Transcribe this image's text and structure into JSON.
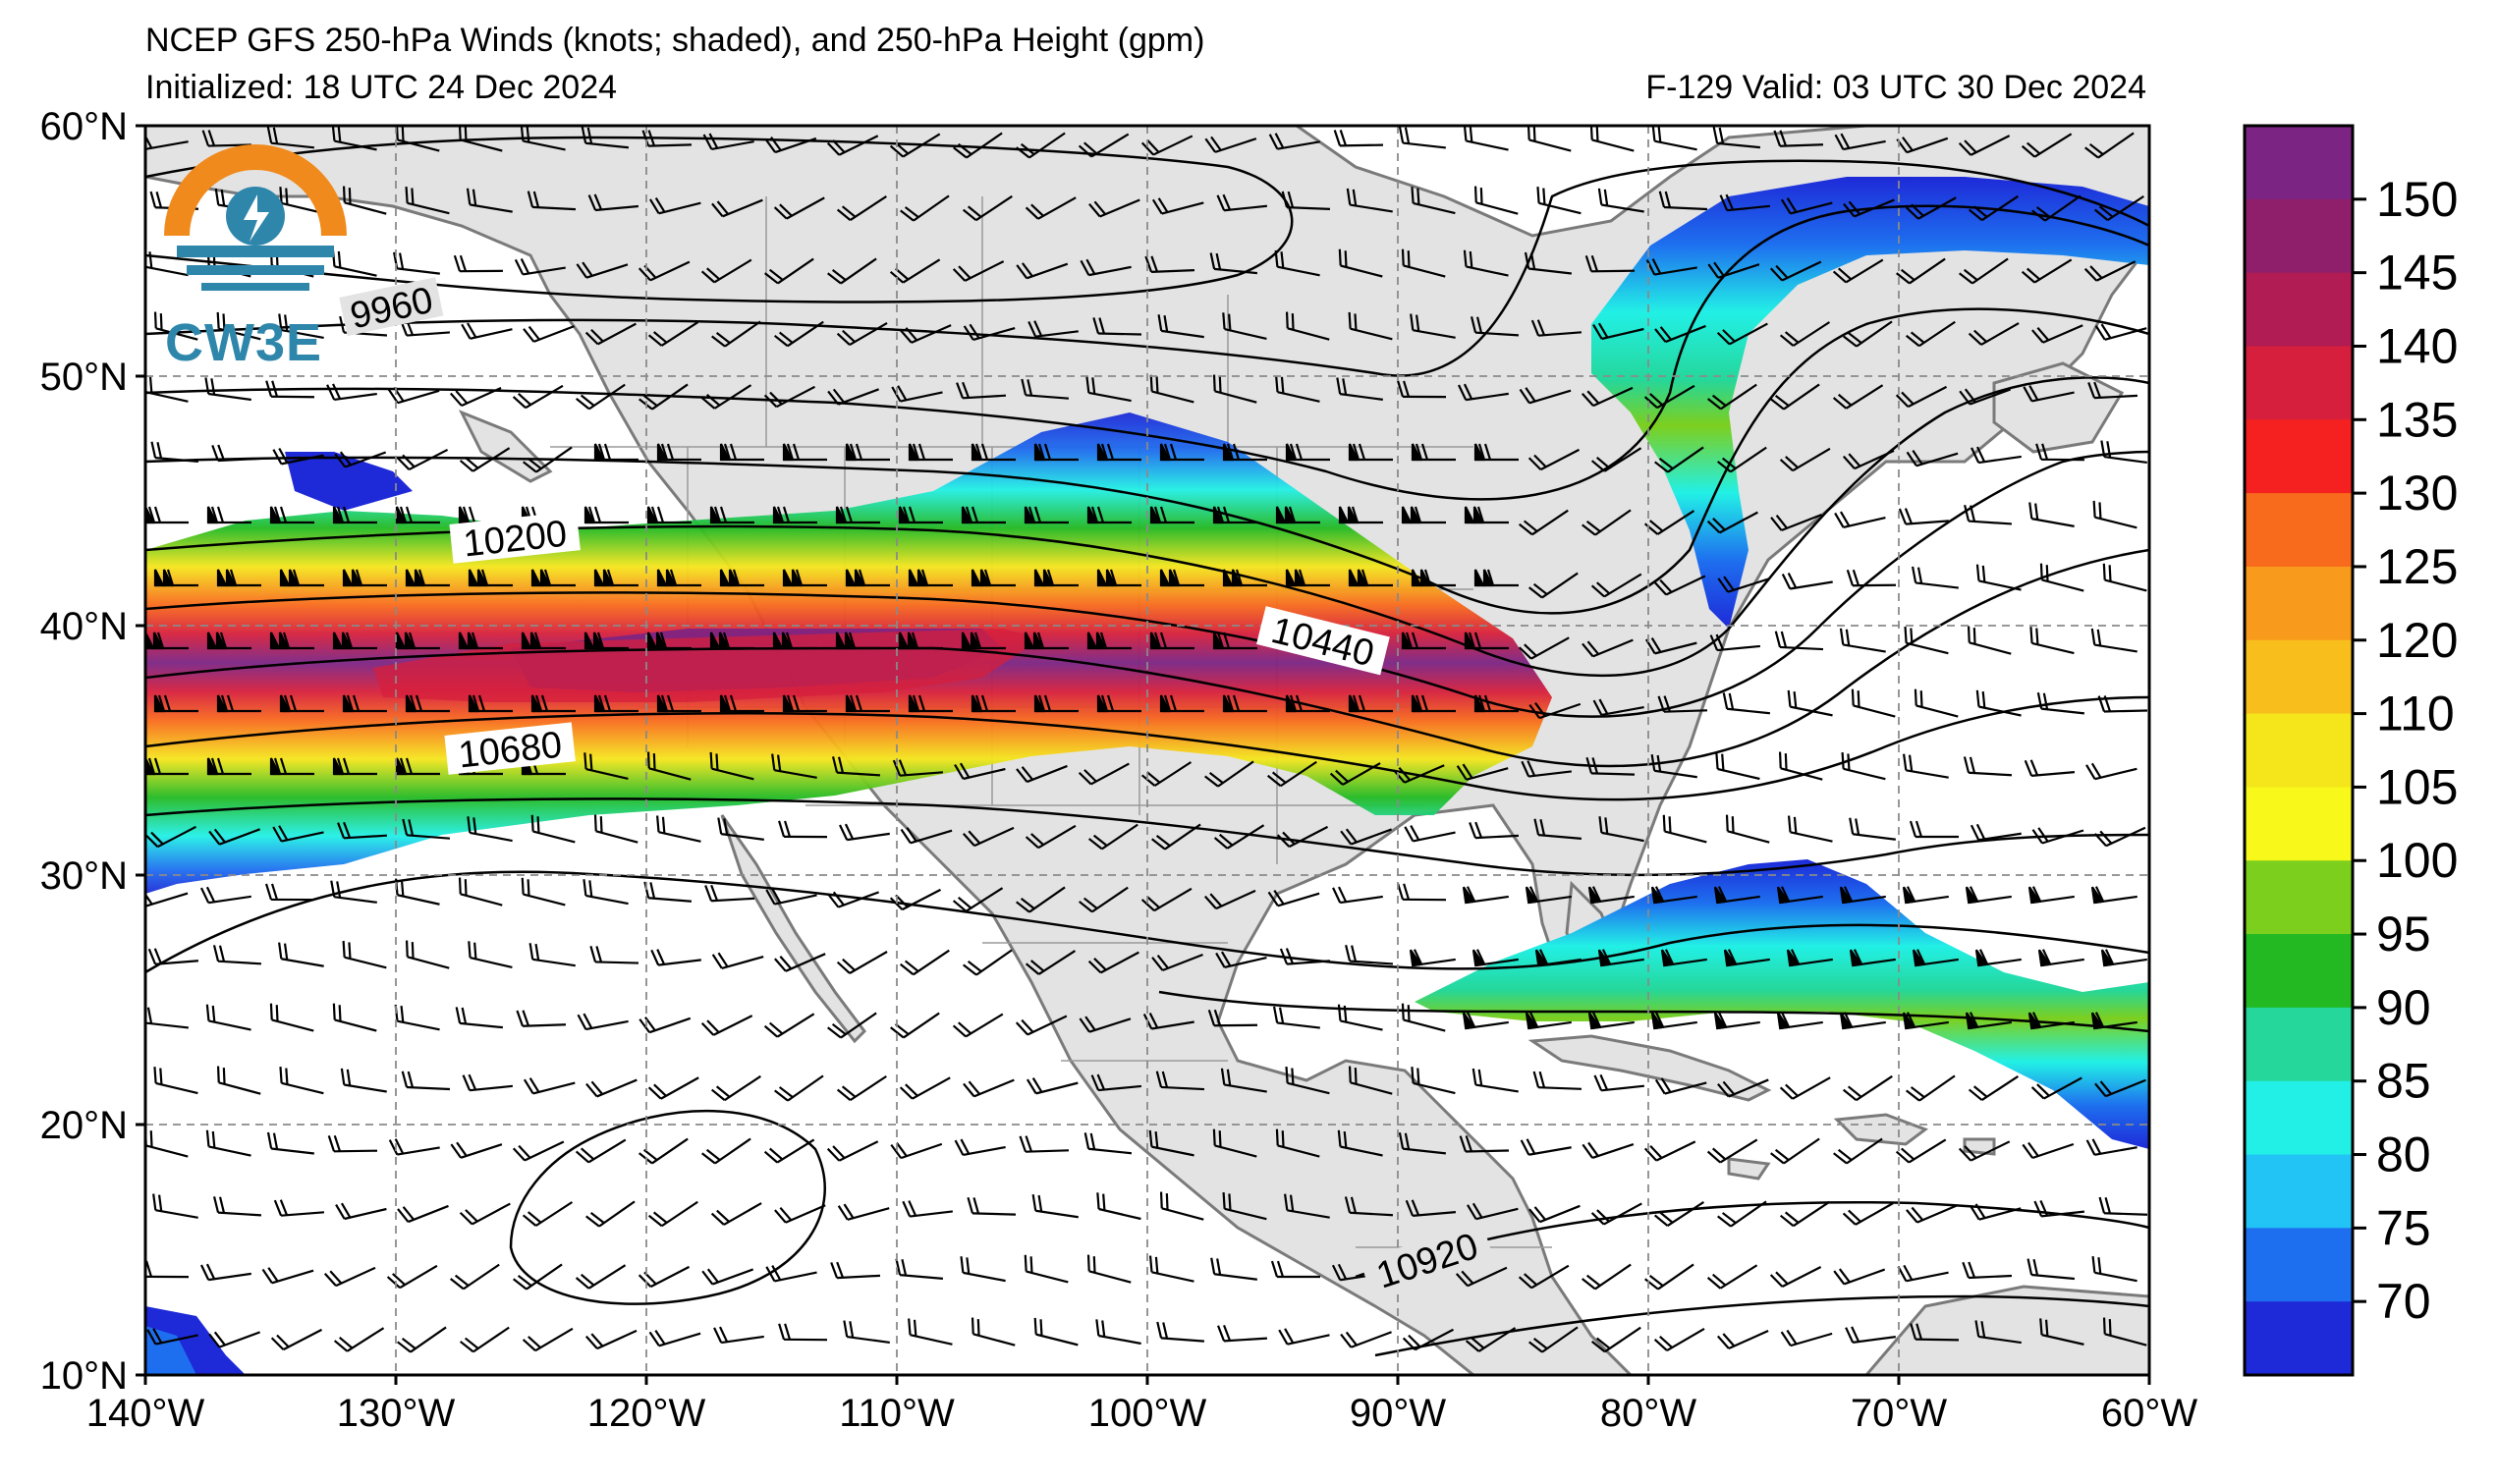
{
  "header": {
    "title": "NCEP GFS 250-hPa Winds (knots; shaded), and 250-hPa Height (gpm)",
    "initialized": "Initialized: 18 UTC 24 Dec 2024",
    "valid": "F-129  Valid: 03 UTC 30 Dec 2024"
  },
  "logo": {
    "text": "CW3E"
  },
  "axes": {
    "lat_labels": [
      "60°N",
      "50°N",
      "40°N",
      "30°N",
      "20°N",
      "10°N"
    ],
    "lon_labels": [
      "140°W",
      "130°W",
      "120°W",
      "110°W",
      "100°W",
      "90°W",
      "80°W",
      "70°W",
      "60°W"
    ],
    "lon_range": [
      -140,
      -60
    ],
    "lat_range": [
      10,
      60
    ]
  },
  "contour_labels": [
    "9960",
    "10200",
    "10440",
    "10680",
    "10920"
  ],
  "colorbar": {
    "labels": [
      "150",
      "145",
      "140",
      "135",
      "130",
      "125",
      "120",
      "110",
      "105",
      "100",
      "95",
      "90",
      "85",
      "80",
      "75",
      "70"
    ],
    "colors": [
      "#7b2484",
      "#8f1f6b",
      "#b01c53",
      "#d61f3c",
      "#f52020",
      "#f86a1c",
      "#f89a1c",
      "#f8bf1c",
      "#f5e61c",
      "#f8f81a",
      "#7dcf1e",
      "#22b922",
      "#25d79a",
      "#22f0e6",
      "#21c4f5",
      "#1e6fef",
      "#1e2ad8"
    ]
  },
  "colors": {
    "land": "#e3e3e3",
    "ocean": "#ffffff",
    "coast": "#7a7a7a",
    "grid": "#8a8a8a"
  }
}
